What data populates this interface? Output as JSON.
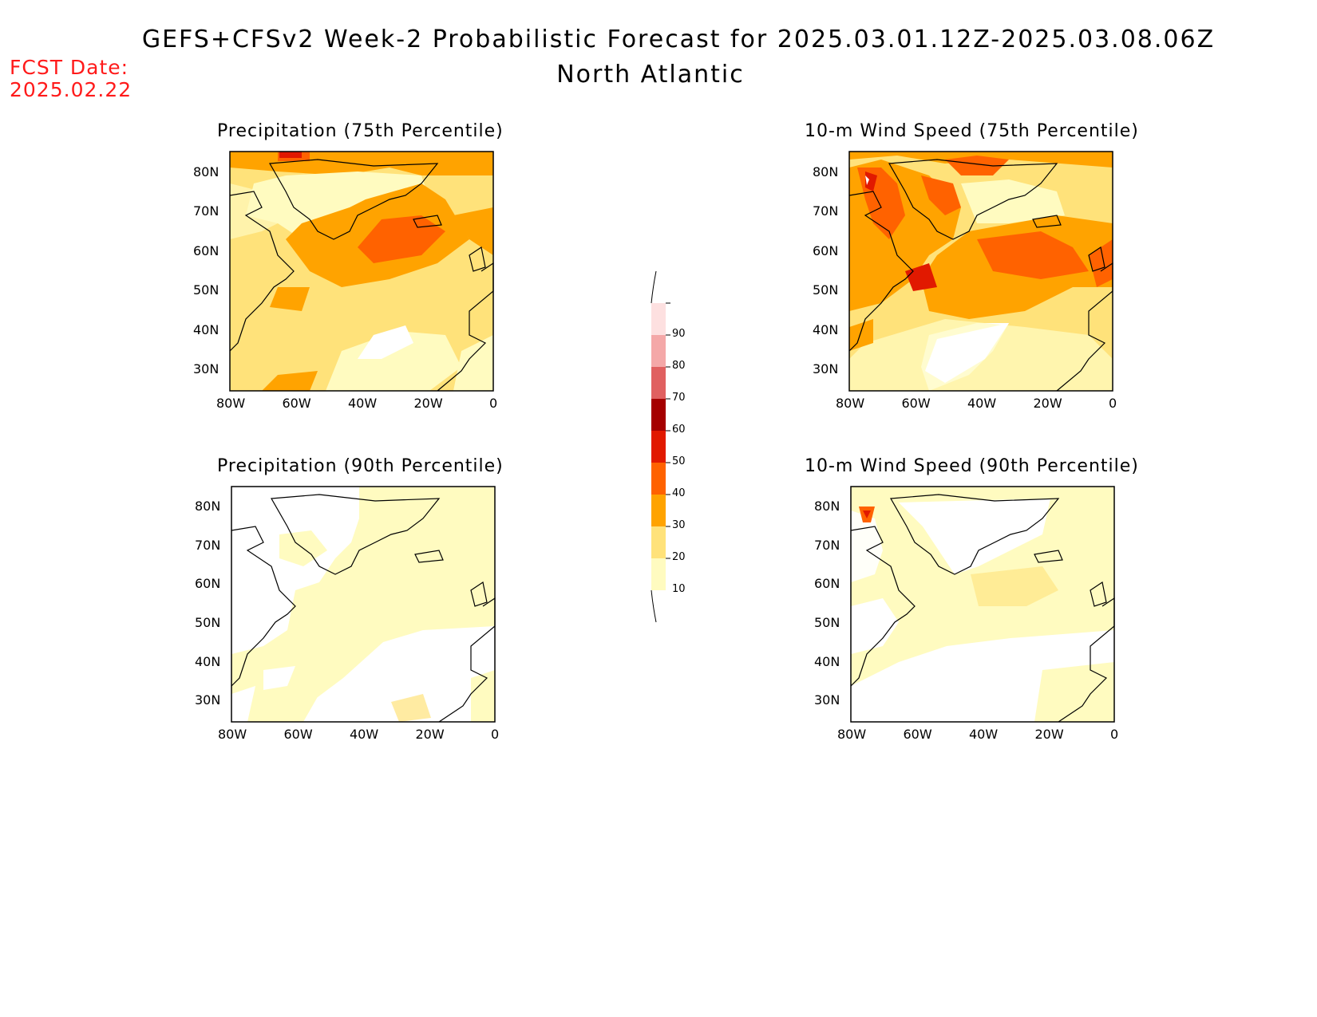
{
  "header": {
    "title": "GEFS+CFSv2 Week-2 Probabilistic Forecast for 2025.03.01.12Z-2025.03.08.06Z",
    "subtitle": "North Atlantic",
    "fcst_label": "FCST Date:",
    "fcst_date": "2025.02.22"
  },
  "axes": {
    "lat_labels": [
      "80N",
      "70N",
      "60N",
      "50N",
      "40N",
      "30N"
    ],
    "lon_labels": [
      "80W",
      "60W",
      "40W",
      "20W",
      "0"
    ]
  },
  "panels": [
    {
      "id": "p75",
      "title": "Precipitation (75th Percentile)"
    },
    {
      "id": "w75",
      "title": "10-m Wind Speed (75th Percentile)"
    },
    {
      "id": "p90",
      "title": "Precipitation (90th Percentile)"
    },
    {
      "id": "w90",
      "title": "10-m Wind Speed (90th Percentile)"
    }
  ],
  "colorbar": {
    "levels": [
      "10",
      "20",
      "30",
      "40",
      "50",
      "60",
      "70",
      "80",
      "90"
    ],
    "colors": [
      "#fffbc0",
      "#ffe27a",
      "#ffa300",
      "#ff6200",
      "#e11900",
      "#a50000",
      "#e06060",
      "#f4a8a8",
      "#fde0e0"
    ]
  },
  "colors": {
    "fcst": "#ff1a1a",
    "level_10": "#fffbc0",
    "level_20": "#ffe27a",
    "level_30": "#ffa300",
    "level_40": "#ff6200",
    "level_50": "#e11900",
    "level_60": "#a50000"
  }
}
